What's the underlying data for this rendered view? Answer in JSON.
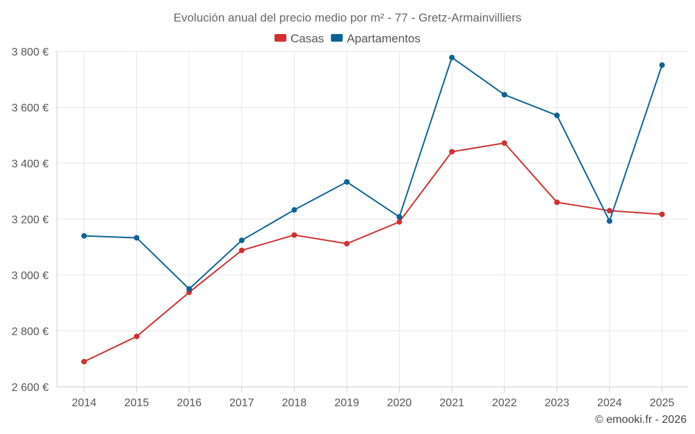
{
  "chart_data": {
    "type": "line",
    "title": "Evolución anual del precio medio por m² - 77 - Gretz-Armainvilliers",
    "x": [
      2014,
      2015,
      2016,
      2017,
      2018,
      2019,
      2020,
      2021,
      2022,
      2023,
      2024,
      2025
    ],
    "ylim": [
      2600,
      3800
    ],
    "yticks": [
      2600,
      2800,
      3000,
      3200,
      3400,
      3600,
      3800
    ],
    "ytick_labels": [
      "2 600 €",
      "2 800 €",
      "3 000 €",
      "3 200 €",
      "3 400 €",
      "3 600 €",
      "3 800 €"
    ],
    "grid": true,
    "legend_position": "top-center",
    "series": [
      {
        "name": "Casas",
        "color": "#d32f2f",
        "values": [
          2690,
          2780,
          2938,
          3088,
          3143,
          3112,
          3190,
          3441,
          3472,
          3260,
          3230,
          3217
        ]
      },
      {
        "name": "Apartamentos",
        "color": "#0b6394",
        "values": [
          3140,
          3133,
          2950,
          3124,
          3233,
          3333,
          3208,
          3778,
          3645,
          3571,
          3193,
          3751
        ]
      }
    ]
  },
  "credit": "© emooki.fr - 2026"
}
